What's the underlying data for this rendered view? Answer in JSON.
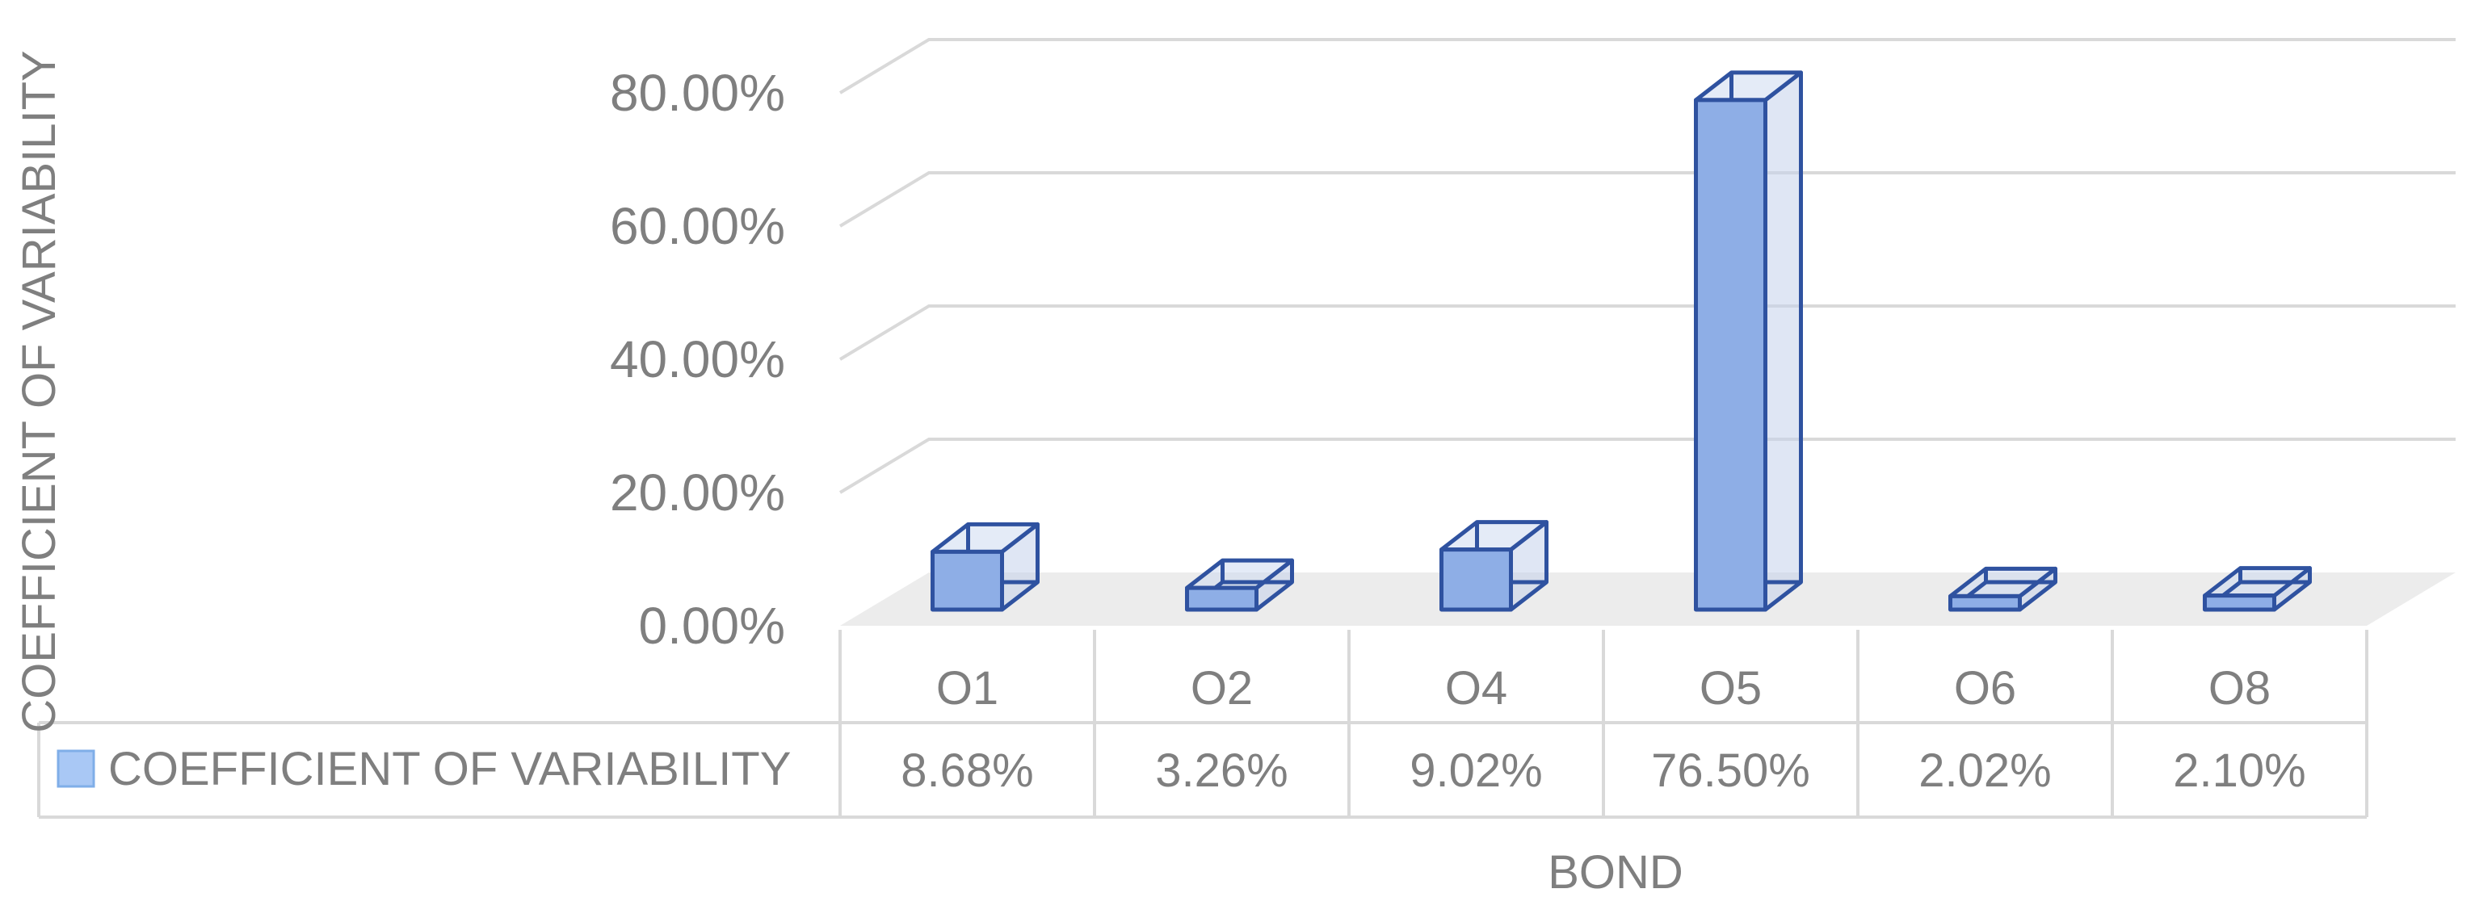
{
  "chart_data": {
    "type": "bar",
    "title": "",
    "xlabel": "BOND",
    "ylabel": "COEFFICIENT OF VARIABILITY",
    "categories": [
      "O1",
      "O2",
      "O4",
      "O5",
      "O6",
      "O8"
    ],
    "series": [
      {
        "name": "COEFFICIENT OF VARIABILITY",
        "values": [
          8.68,
          3.26,
          9.02,
          76.5,
          2.02,
          2.1
        ],
        "value_labels": [
          "8.68%",
          "3.26%",
          "9.02%",
          "76.50%",
          "2.02%",
          "2.10%"
        ],
        "color": "#8eaee6"
      }
    ],
    "y_ticks": [
      0,
      20,
      40,
      60,
      80
    ],
    "y_tick_labels": [
      "0.00%",
      "20.00%",
      "40.00%",
      "60.00%",
      "80.00%"
    ],
    "ylim": [
      0,
      80
    ],
    "grid": true,
    "data_table": true,
    "three_d": true,
    "legend_placement": "data-table"
  }
}
